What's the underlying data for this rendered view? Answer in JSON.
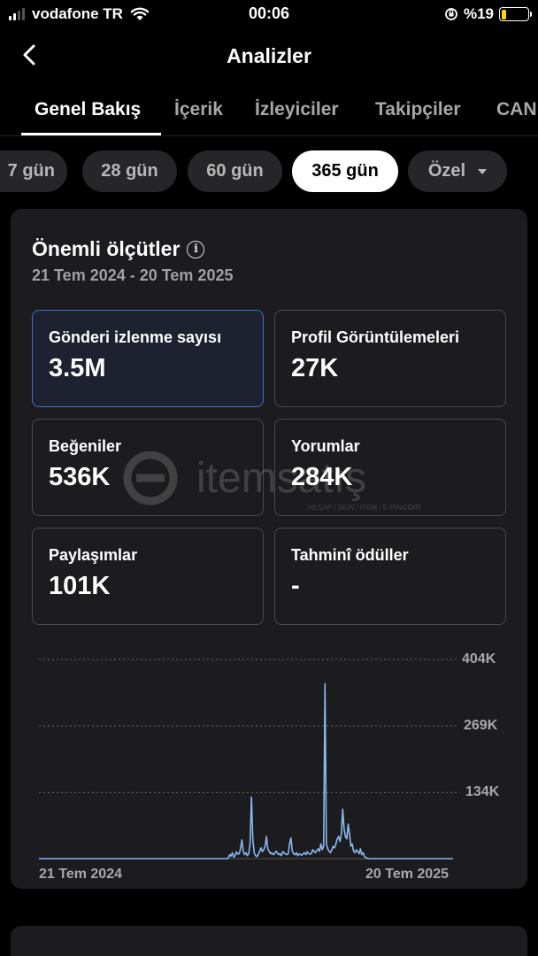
{
  "status_bar": {
    "carrier": "vodafone TR",
    "time": "00:06",
    "battery_percent": "%19",
    "battery_level": 0.19,
    "battery_color": "#ffd60a"
  },
  "header": {
    "title": "Analizler",
    "back_icon": "chevron-left-icon"
  },
  "tabs": [
    {
      "label": "Genel Bakış",
      "active": true
    },
    {
      "label": "İçerik"
    },
    {
      "label": "İzleyiciler"
    },
    {
      "label": "Takipçiler"
    },
    {
      "label": "CAN"
    }
  ],
  "chips": [
    {
      "label": "7 gün"
    },
    {
      "label": "28 gün"
    },
    {
      "label": "60 gün"
    },
    {
      "label": "365 gün",
      "active": true
    },
    {
      "label": "Özel",
      "dropdown": true
    }
  ],
  "metrics_card": {
    "title": "Önemli ölçütler",
    "date_range": "21 Tem 2024 - 20 Tem 2025",
    "metrics": [
      {
        "label": "Gönderi izlenme sayısı",
        "value": "3.5M",
        "selected": true
      },
      {
        "label": "Profil Görüntülemeleri",
        "value": "27K"
      },
      {
        "label": "Beğeniler",
        "value": "536K"
      },
      {
        "label": "Yorumlar",
        "value": "284K"
      },
      {
        "label": "Paylaşımlar",
        "value": "101K"
      },
      {
        "label": "Tahminî ödüller",
        "value": "-"
      }
    ]
  },
  "watermark": {
    "text": "itemsatış",
    "subtext": "HESAP / SKIN / ITEM / E-PIN",
    "domain": ".com"
  },
  "chart_data": {
    "type": "line",
    "x_labels": [
      "21 Tem 2024",
      "20 Tem 2025"
    ],
    "y_ticks": [
      "404K",
      "269K",
      "134K"
    ],
    "ylim": [
      0,
      404000
    ],
    "grid": true,
    "line_color": "#8ab8f0",
    "values": [
      0,
      0,
      0,
      0,
      0,
      0,
      0,
      0,
      0,
      0,
      0,
      0,
      0,
      0,
      0,
      0,
      0,
      0,
      0,
      0,
      0,
      0,
      0,
      0,
      0,
      0,
      0,
      0,
      0,
      0,
      0,
      0,
      0,
      0,
      0,
      0,
      0,
      0,
      0,
      0,
      0,
      0,
      0,
      0,
      0,
      0,
      0,
      0,
      0,
      0,
      0,
      0,
      0,
      0,
      0,
      0,
      0,
      0,
      0,
      0,
      0,
      0,
      0,
      0,
      0,
      0,
      0,
      0,
      0,
      0,
      0,
      0,
      0,
      0,
      0,
      0,
      0,
      0,
      0,
      0,
      0,
      0,
      0,
      0,
      0,
      0,
      0,
      0,
      0,
      0,
      0,
      0,
      0,
      0,
      0,
      0,
      0,
      0,
      0,
      0,
      0,
      0,
      0,
      0,
      0,
      0,
      0,
      0,
      0,
      0,
      0,
      0,
      0,
      0,
      0,
      0,
      0,
      0,
      0,
      0,
      0,
      0,
      0,
      0,
      0,
      0,
      0,
      0,
      0,
      0,
      0,
      0,
      0,
      0,
      0,
      0,
      0,
      0,
      0,
      1000,
      8000,
      5000,
      12000,
      3000,
      6000,
      14000,
      9000,
      10000,
      20000,
      38000,
      15000,
      8000,
      12000,
      6000,
      10000,
      30000,
      125000,
      40000,
      12000,
      6000,
      4000,
      8000,
      15000,
      22000,
      14000,
      18000,
      25000,
      45000,
      20000,
      15000,
      10000,
      12000,
      8000,
      10000,
      15000,
      12000,
      8000,
      10000,
      6000,
      14000,
      12000,
      9000,
      8000,
      10000,
      30000,
      42000,
      15000,
      10000,
      8000,
      12000,
      6000,
      10000,
      8000,
      7000,
      10000,
      12000,
      8000,
      14000,
      10000,
      9000,
      10000,
      18000,
      15000,
      12000,
      16000,
      20000,
      15000,
      30000,
      18000,
      25000,
      355000,
      30000,
      20000,
      15000,
      12000,
      18000,
      25000,
      22000,
      30000,
      40000,
      45000,
      35000,
      50000,
      100000,
      60000,
      45000,
      40000,
      70000,
      50000,
      25000,
      30000,
      15000,
      12000,
      18000,
      15000,
      10000,
      20000,
      8000,
      12000,
      4000,
      2000,
      1000,
      0,
      0,
      0,
      0,
      0,
      0,
      0,
      0,
      0,
      0,
      0,
      0,
      0,
      0,
      0,
      0,
      0,
      0,
      0,
      0,
      0,
      0,
      0,
      0,
      0,
      0,
      0,
      0,
      0,
      0,
      0,
      0,
      0,
      0,
      0,
      0,
      0,
      0,
      0,
      0,
      0,
      0,
      0,
      0,
      0,
      0,
      0,
      0,
      0,
      0,
      0,
      0,
      0,
      0,
      0,
      0,
      0,
      0,
      0,
      0,
      0,
      0,
      0
    ]
  }
}
